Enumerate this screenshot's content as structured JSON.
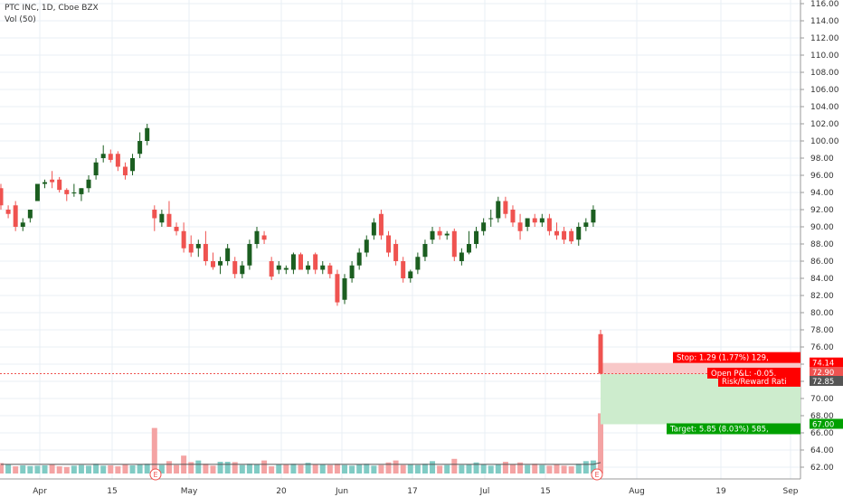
{
  "legend": {
    "title": "PTC INC, 1D, Cboe BZX",
    "volume": "Vol (50)"
  },
  "colors": {
    "up": "#26a69a",
    "up_body": "#1b5e20",
    "down": "#ef5350",
    "vol_up": "#80cbc4",
    "vol_down": "#f4a3a3",
    "stop": "#ff0000",
    "target": "#00a000",
    "stop_zone": "#f8c8c8",
    "target_zone": "#cdeccd",
    "grid": "#e9eff4",
    "axis_text": "#333333"
  },
  "chart_data": {
    "type": "candlestick",
    "title": "PTC INC, 1D, Cboe BZX",
    "ylim": [
      60.0,
      117.0
    ],
    "y_ticks": [
      "62.00",
      "64.00",
      "66.00",
      "68.00",
      "70.00",
      "72.00",
      "74.00",
      "76.00",
      "78.00",
      "80.00",
      "82.00",
      "84.00",
      "86.00",
      "88.00",
      "90.00",
      "92.00",
      "94.00",
      "96.00",
      "98.00",
      "100.00",
      "102.00",
      "104.00",
      "106.00",
      "108.00",
      "110.00",
      "112.00",
      "114.00",
      "116.00"
    ],
    "x_ticks": [
      "Apr",
      "15",
      "May",
      "20",
      "Jun",
      "17",
      "Jul",
      "15",
      "Aug",
      "19",
      "Sep"
    ],
    "candles": [
      {
        "o": 94.5,
        "h": 95.0,
        "l": 92.0,
        "c": 92.5
      },
      {
        "o": 92.0,
        "h": 92.5,
        "l": 91.0,
        "c": 91.5
      },
      {
        "o": 92.5,
        "h": 93.0,
        "l": 89.5,
        "c": 90.0
      },
      {
        "o": 90.0,
        "h": 91.0,
        "l": 89.5,
        "c": 90.5
      },
      {
        "o": 91.0,
        "h": 92.0,
        "l": 90.5,
        "c": 92.0
      },
      {
        "o": 93.0,
        "h": 95.0,
        "l": 93.0,
        "c": 95.0
      },
      {
        "o": 95.0,
        "h": 95.5,
        "l": 94.5,
        "c": 95.2
      },
      {
        "o": 95.5,
        "h": 96.5,
        "l": 94.5,
        "c": 95.2
      },
      {
        "o": 95.5,
        "h": 95.8,
        "l": 94.0,
        "c": 94.3
      },
      {
        "o": 94.3,
        "h": 94.5,
        "l": 93.0,
        "c": 93.8
      },
      {
        "o": 94.0,
        "h": 95.0,
        "l": 93.5,
        "c": 94.0
      },
      {
        "o": 93.8,
        "h": 94.5,
        "l": 93.0,
        "c": 94.5
      },
      {
        "o": 94.5,
        "h": 96.0,
        "l": 94.0,
        "c": 95.5
      },
      {
        "o": 96.0,
        "h": 98.0,
        "l": 95.5,
        "c": 97.5
      },
      {
        "o": 98.0,
        "h": 99.5,
        "l": 97.5,
        "c": 98.5
      },
      {
        "o": 98.5,
        "h": 99.0,
        "l": 97.5,
        "c": 97.8
      },
      {
        "o": 98.5,
        "h": 98.8,
        "l": 96.5,
        "c": 97.0
      },
      {
        "o": 97.0,
        "h": 97.5,
        "l": 95.5,
        "c": 96.0
      },
      {
        "o": 96.5,
        "h": 98.5,
        "l": 96.0,
        "c": 98.0
      },
      {
        "o": 98.5,
        "h": 101.0,
        "l": 98.0,
        "c": 100.0
      },
      {
        "o": 100.0,
        "h": 102.0,
        "l": 99.5,
        "c": 101.5
      },
      {
        "o": 92.0,
        "h": 92.5,
        "l": 89.5,
        "c": 91.0
      },
      {
        "o": 90.5,
        "h": 92.0,
        "l": 90.0,
        "c": 91.5
      },
      {
        "o": 91.5,
        "h": 93.0,
        "l": 90.0,
        "c": 90.0
      },
      {
        "o": 90.0,
        "h": 90.5,
        "l": 89.0,
        "c": 89.5
      },
      {
        "o": 89.5,
        "h": 90.5,
        "l": 87.0,
        "c": 87.5
      },
      {
        "o": 88.0,
        "h": 89.0,
        "l": 86.5,
        "c": 87.0
      },
      {
        "o": 87.5,
        "h": 88.5,
        "l": 86.5,
        "c": 88.0
      },
      {
        "o": 88.0,
        "h": 89.5,
        "l": 85.5,
        "c": 86.0
      },
      {
        "o": 86.0,
        "h": 87.0,
        "l": 85.0,
        "c": 85.3
      },
      {
        "o": 85.5,
        "h": 86.5,
        "l": 84.5,
        "c": 86.0
      },
      {
        "o": 86.0,
        "h": 88.0,
        "l": 85.5,
        "c": 87.5
      },
      {
        "o": 86.0,
        "h": 86.5,
        "l": 84.0,
        "c": 84.5
      },
      {
        "o": 84.5,
        "h": 86.0,
        "l": 84.0,
        "c": 85.5
      },
      {
        "o": 85.5,
        "h": 88.5,
        "l": 85.0,
        "c": 88.0
      },
      {
        "o": 88.0,
        "h": 90.0,
        "l": 87.5,
        "c": 89.5
      },
      {
        "o": 89.0,
        "h": 89.5,
        "l": 88.0,
        "c": 88.5
      },
      {
        "o": 86.0,
        "h": 86.5,
        "l": 83.8,
        "c": 84.2
      },
      {
        "o": 85.0,
        "h": 86.0,
        "l": 84.5,
        "c": 85.5
      },
      {
        "o": 85.0,
        "h": 85.5,
        "l": 84.5,
        "c": 85.2
      },
      {
        "o": 85.0,
        "h": 87.0,
        "l": 84.5,
        "c": 86.8
      },
      {
        "o": 86.8,
        "h": 87.0,
        "l": 85.0,
        "c": 85.0
      },
      {
        "o": 85.0,
        "h": 86.0,
        "l": 84.5,
        "c": 85.5
      },
      {
        "o": 86.8,
        "h": 87.0,
        "l": 84.5,
        "c": 85.0
      },
      {
        "o": 85.0,
        "h": 86.0,
        "l": 84.5,
        "c": 85.5
      },
      {
        "o": 85.5,
        "h": 85.8,
        "l": 84.0,
        "c": 84.5
      },
      {
        "o": 84.5,
        "h": 85.0,
        "l": 80.8,
        "c": 81.2
      },
      {
        "o": 81.5,
        "h": 84.5,
        "l": 81.0,
        "c": 84.0
      },
      {
        "o": 84.0,
        "h": 86.0,
        "l": 83.5,
        "c": 85.5
      },
      {
        "o": 85.5,
        "h": 87.5,
        "l": 85.0,
        "c": 87.0
      },
      {
        "o": 87.0,
        "h": 89.0,
        "l": 86.5,
        "c": 88.5
      },
      {
        "o": 89.0,
        "h": 91.0,
        "l": 88.5,
        "c": 90.5
      },
      {
        "o": 91.5,
        "h": 92.0,
        "l": 88.5,
        "c": 89.0
      },
      {
        "o": 89.0,
        "h": 89.5,
        "l": 86.5,
        "c": 87.0
      },
      {
        "o": 88.0,
        "h": 88.5,
        "l": 85.5,
        "c": 86.0
      },
      {
        "o": 86.0,
        "h": 86.5,
        "l": 83.5,
        "c": 84.0
      },
      {
        "o": 84.0,
        "h": 85.0,
        "l": 83.5,
        "c": 84.8
      },
      {
        "o": 85.0,
        "h": 87.0,
        "l": 84.5,
        "c": 86.5
      },
      {
        "o": 86.5,
        "h": 88.5,
        "l": 86.0,
        "c": 88.0
      },
      {
        "o": 88.5,
        "h": 90.0,
        "l": 88.0,
        "c": 89.5
      },
      {
        "o": 89.5,
        "h": 90.0,
        "l": 88.5,
        "c": 89.0
      },
      {
        "o": 89.0,
        "h": 89.5,
        "l": 88.5,
        "c": 89.2
      },
      {
        "o": 89.5,
        "h": 89.8,
        "l": 86.0,
        "c": 86.5
      },
      {
        "o": 86.0,
        "h": 87.5,
        "l": 85.5,
        "c": 87.0
      },
      {
        "o": 87.0,
        "h": 89.5,
        "l": 86.8,
        "c": 88.0
      },
      {
        "o": 88.0,
        "h": 90.0,
        "l": 87.5,
        "c": 89.5
      },
      {
        "o": 89.5,
        "h": 91.0,
        "l": 89.0,
        "c": 90.5
      },
      {
        "o": 91.0,
        "h": 92.0,
        "l": 90.0,
        "c": 91.0
      },
      {
        "o": 91.0,
        "h": 93.5,
        "l": 90.5,
        "c": 93.0
      },
      {
        "o": 93.0,
        "h": 93.5,
        "l": 91.0,
        "c": 91.5
      },
      {
        "o": 92.0,
        "h": 92.5,
        "l": 90.0,
        "c": 90.5
      },
      {
        "o": 90.5,
        "h": 91.5,
        "l": 88.5,
        "c": 89.5
      },
      {
        "o": 90.0,
        "h": 91.0,
        "l": 89.5,
        "c": 91.0
      },
      {
        "o": 91.0,
        "h": 91.5,
        "l": 90.0,
        "c": 90.5
      },
      {
        "o": 90.5,
        "h": 91.5,
        "l": 90.0,
        "c": 91.0
      },
      {
        "o": 91.0,
        "h": 91.5,
        "l": 89.0,
        "c": 89.5
      },
      {
        "o": 89.5,
        "h": 90.5,
        "l": 88.5,
        "c": 89.0
      },
      {
        "o": 89.5,
        "h": 90.0,
        "l": 88.0,
        "c": 88.5
      },
      {
        "o": 89.5,
        "h": 89.8,
        "l": 88.0,
        "c": 88.3
      },
      {
        "o": 88.5,
        "h": 90.5,
        "l": 87.8,
        "c": 90.0
      },
      {
        "o": 90.0,
        "h": 91.0,
        "l": 89.5,
        "c": 90.5
      },
      {
        "o": 90.5,
        "h": 92.5,
        "l": 90.0,
        "c": 92.0
      },
      {
        "o": 77.5,
        "h": 78.0,
        "l": 72.8,
        "c": 72.9
      }
    ],
    "volumes": [
      32,
      28,
      22,
      25,
      23,
      24,
      25,
      28,
      22,
      20,
      24,
      26,
      24,
      30,
      24,
      25,
      22,
      28,
      25,
      28,
      30,
      140,
      26,
      38,
      26,
      55,
      35,
      40,
      30,
      24,
      36,
      36,
      35,
      26,
      30,
      28,
      40,
      22,
      28,
      28,
      30,
      26,
      33,
      28,
      28,
      26,
      30,
      26,
      24,
      28,
      30,
      24,
      26,
      34,
      40,
      26,
      28,
      26,
      30,
      38,
      24,
      26,
      45,
      26,
      28,
      34,
      28,
      24,
      28,
      36,
      28,
      34,
      26,
      30,
      26,
      24,
      28,
      24,
      22,
      30,
      38,
      40,
      185
    ],
    "volume_up": [
      false,
      true,
      false,
      true,
      true,
      true,
      true,
      false,
      false,
      false,
      true,
      true,
      true,
      true,
      true,
      false,
      false,
      false,
      true,
      true,
      true,
      false,
      true,
      false,
      false,
      false,
      false,
      true,
      false,
      false,
      true,
      true,
      false,
      true,
      true,
      true,
      false,
      false,
      true,
      false,
      true,
      false,
      true,
      false,
      true,
      false,
      false,
      true,
      true,
      true,
      true,
      true,
      false,
      false,
      false,
      false,
      true,
      true,
      true,
      true,
      false,
      true,
      false,
      true,
      true,
      true,
      true,
      true,
      true,
      false,
      false,
      false,
      true,
      false,
      true,
      false,
      false,
      false,
      false,
      true,
      true,
      true,
      false
    ],
    "last_price": 72.9,
    "earnings_markers": [
      "E",
      "E"
    ],
    "position": {
      "entry": 72.85,
      "stop": 74.14,
      "target": 67.0,
      "stop_label": "Stop: 1.29 (1.77%) 129,",
      "target_label": "Target: 5.85 (8.03%) 585,",
      "pnl_label": "Open P&L: -0.05,",
      "rr_label": "Risk/Reward Rati",
      "price_labels": [
        "74.14",
        "72.90",
        "72.85",
        "67.00"
      ]
    }
  }
}
